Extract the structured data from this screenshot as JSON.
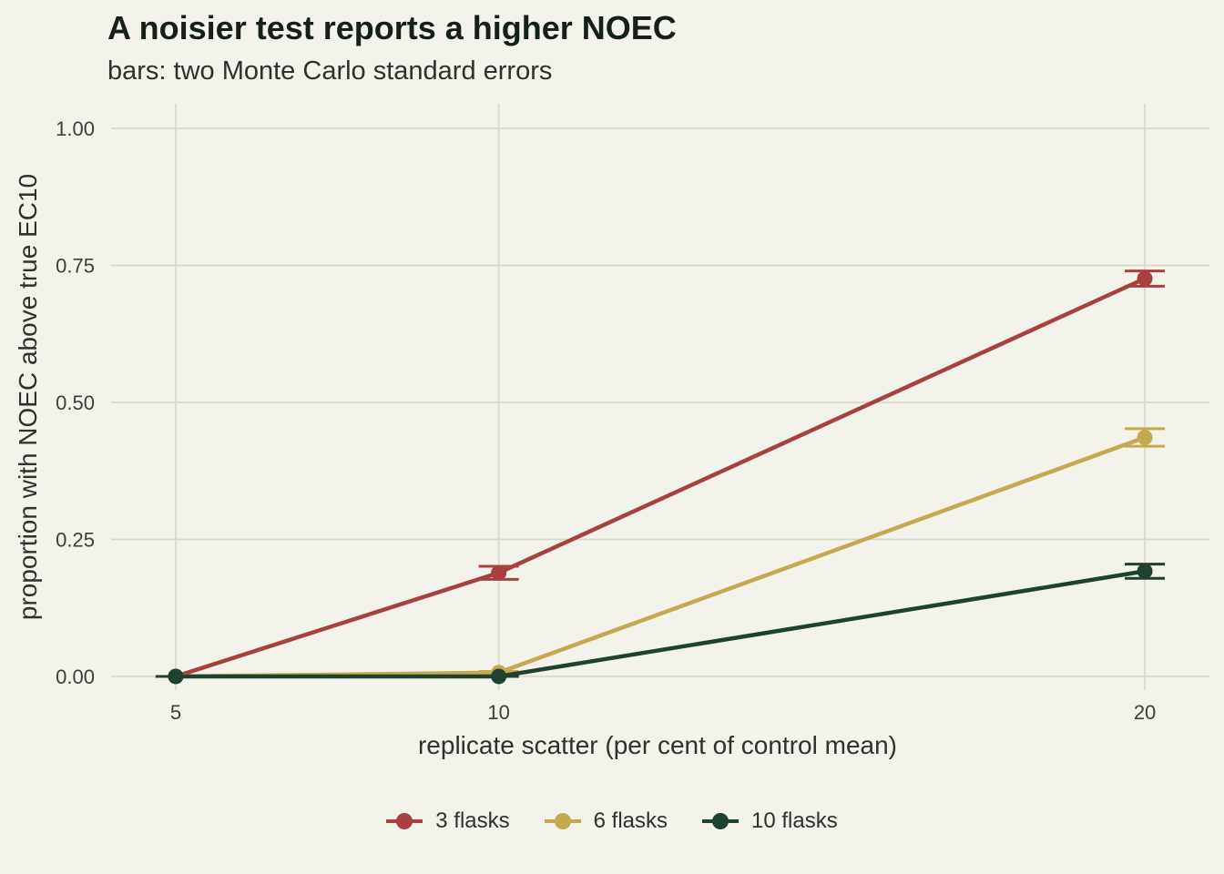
{
  "title": "A noisier test reports a higher NOEC",
  "subtitle": "bars: two Monte Carlo standard errors",
  "chart_data": {
    "type": "line",
    "xlabel": "replicate scatter (per cent of control mean)",
    "ylabel": "proportion with NOEC above true EC10",
    "x": [
      5,
      10,
      20
    ],
    "x_ticks": [
      "5",
      "10",
      "20"
    ],
    "y_ticks": [
      "0.00",
      "0.25",
      "0.50",
      "0.75",
      "1.00"
    ],
    "xlim": [
      4,
      21
    ],
    "ylim": [
      -0.025,
      1.045
    ],
    "grid": true,
    "legend_position": "bottom",
    "error_bars": "two Monte Carlo standard errors",
    "series": [
      {
        "name": "3 flasks",
        "color": "#a84040",
        "values": [
          0.0,
          0.189,
          0.726
        ],
        "err": [
          0.0,
          0.012,
          0.014
        ]
      },
      {
        "name": "6 flasks",
        "color": "#c5a94e",
        "values": [
          0.0,
          0.007,
          0.436
        ],
        "err": [
          0.0,
          0.002,
          0.016
        ]
      },
      {
        "name": "10 flasks",
        "color": "#1f4230",
        "values": [
          0.0,
          0.0,
          0.192
        ],
        "err": [
          0.0,
          0.0,
          0.013
        ]
      }
    ]
  }
}
